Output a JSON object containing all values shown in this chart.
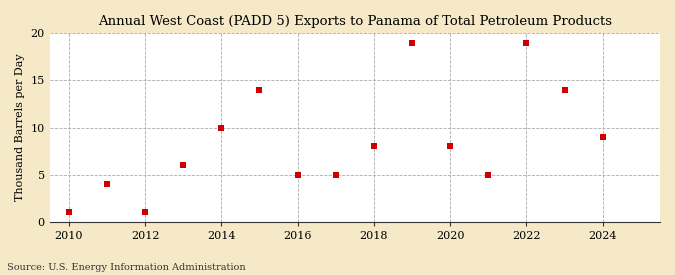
{
  "title": "Annual West Coast (PADD 5) Exports to Panama of Total Petroleum Products",
  "ylabel": "Thousand Barrels per Day",
  "source": "Source: U.S. Energy Information Administration",
  "fig_background_color": "#f5e9c8",
  "plot_background_color": "#ffffff",
  "marker_color": "#cc0000",
  "grid_color": "#aaaaaa",
  "years": [
    2010,
    2011,
    2012,
    2013,
    2014,
    2015,
    2016,
    2017,
    2018,
    2019,
    2020,
    2021,
    2022,
    2023,
    2024
  ],
  "values": [
    1.0,
    4.0,
    1.0,
    6.0,
    10.0,
    14.0,
    5.0,
    5.0,
    8.0,
    19.0,
    8.0,
    5.0,
    19.0,
    14.0,
    9.0
  ],
  "xlim": [
    2009.5,
    2025.5
  ],
  "ylim": [
    0,
    20
  ],
  "yticks": [
    0,
    5,
    10,
    15,
    20
  ],
  "xticks": [
    2010,
    2012,
    2014,
    2016,
    2018,
    2020,
    2022,
    2024
  ],
  "vlines": [
    2010,
    2012,
    2014,
    2016,
    2018,
    2020,
    2022,
    2024
  ],
  "title_fontsize": 9.5,
  "label_fontsize": 8,
  "tick_fontsize": 8,
  "source_fontsize": 7
}
